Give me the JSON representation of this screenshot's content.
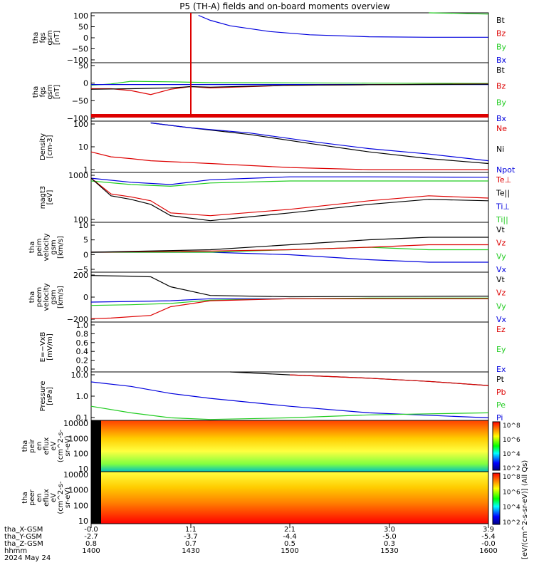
{
  "title": "P5 (TH-A) fields and on-board moments overview",
  "colors": {
    "black": "#000000",
    "red": "#dd0000",
    "green": "#22cc22",
    "blue": "#0000dd"
  },
  "bottom_axis": {
    "rows": [
      {
        "label": "tha_X-GSM",
        "values": [
          "-0.0",
          "1.1",
          "2.1",
          "3.0",
          "3.9"
        ]
      },
      {
        "label": "tha_Y-GSM",
        "values": [
          "-2.7",
          "-3.7",
          "-4.4",
          "-5.0",
          "-5.4"
        ]
      },
      {
        "label": "tha_Z-GSM",
        "values": [
          "0.8",
          "0.7",
          "0.5",
          "0.3",
          "-0.0"
        ]
      },
      {
        "label": "hhmm",
        "values": [
          "1400",
          "1430",
          "1500",
          "1530",
          "1600"
        ]
      }
    ],
    "date": "2024 May 24"
  },
  "colorbar": {
    "label": "[eV/(cm^2-s-sr-eV)] (All Qs)",
    "top_ticks": [
      "10^8",
      "10^6",
      "10^4",
      "10^2"
    ],
    "bottom_ticks": [
      "10^8",
      "10^6",
      "10^4",
      "10^2"
    ]
  },
  "chart_data": [
    {
      "id": "p1",
      "type": "line",
      "ylabel": [
        "tha",
        "fgs",
        "gsm",
        "[nT]"
      ],
      "yticks": [
        "100",
        "50",
        "0",
        "−50",
        "−100"
      ],
      "ylim": [
        -100,
        100
      ],
      "legend": [
        {
          "name": "Bt",
          "color": "#000000"
        },
        {
          "name": "Bz",
          "color": "#dd0000"
        },
        {
          "name": "By",
          "color": "#22cc22"
        },
        {
          "name": "Bx",
          "color": "#0000dd"
        }
      ],
      "series": [
        {
          "name": "Bx",
          "color": "#0000dd",
          "x": [
            0.27,
            0.3,
            0.35,
            0.45,
            0.55,
            0.7,
            0.85,
            1.0
          ],
          "y": [
            90,
            70,
            48,
            25,
            12,
            4,
            2,
            2
          ]
        },
        {
          "name": "By",
          "color": "#22cc22",
          "x": [
            0.85,
            0.92,
            1.0
          ],
          "y": [
            100,
            98,
            95
          ]
        }
      ]
    },
    {
      "id": "p2",
      "type": "line",
      "ylabel": [
        "tha",
        "fgs",
        "gsm",
        "[nT]"
      ],
      "yticks": [
        "50",
        "0",
        "−50",
        "−100"
      ],
      "ylim": [
        -140,
        80
      ],
      "legend": [
        {
          "name": "Bt",
          "color": "#000000"
        },
        {
          "name": "Bz",
          "color": "#dd0000"
        },
        {
          "name": "By",
          "color": "#22cc22"
        },
        {
          "name": "Bx",
          "color": "#0000dd"
        }
      ],
      "series": [
        {
          "name": "By",
          "color": "#22cc22",
          "x": [
            0,
            0.05,
            0.1,
            0.2,
            0.3,
            0.5,
            0.7,
            1.0
          ],
          "y": [
            -5,
            0,
            10,
            8,
            5,
            4,
            3,
            2
          ]
        },
        {
          "name": "Bx",
          "color": "#0000dd",
          "x": [
            0,
            0.2,
            0.4,
            0.6,
            0.8,
            1.0
          ],
          "y": [
            -2,
            -2,
            -2,
            -2,
            -2,
            -2
          ]
        },
        {
          "name": "Bz",
          "color": "#dd0000",
          "x": [
            0,
            0.05,
            0.1,
            0.15,
            0.2,
            0.25,
            0.3,
            0.5,
            0.7,
            1.0
          ],
          "y": [
            -18,
            -18,
            -25,
            -40,
            -20,
            -10,
            -15,
            -5,
            -3,
            0
          ]
        },
        {
          "name": "Bt",
          "color": "#000000",
          "x": [
            0,
            0.1,
            0.2,
            0.25,
            0.3,
            0.5,
            0.7,
            1.0
          ],
          "y": [
            -20,
            -18,
            -15,
            -10,
            -12,
            -5,
            -3,
            -1
          ]
        }
      ]
    },
    {
      "id": "p3",
      "type": "line",
      "ylabel": [
        "Density",
        "[cm-3]"
      ],
      "yticks": [
        "100",
        "10",
        "1"
      ],
      "ylim": [
        0.6,
        120
      ],
      "log": true,
      "legend": [
        {
          "name": "Ne",
          "color": "#dd0000"
        },
        {
          "name": "Ni",
          "color": "#000000"
        },
        {
          "name": "Npot",
          "color": "#0000dd"
        }
      ],
      "series": [
        {
          "name": "Ni",
          "color": "#000000",
          "x": [
            0.15,
            0.25,
            0.4,
            0.55,
            0.7,
            0.85,
            1.0
          ],
          "y": [
            100,
            60,
            30,
            12,
            5,
            2.5,
            1.5
          ]
        },
        {
          "name": "Npot",
          "color": "#0000dd",
          "x": [
            0.15,
            0.25,
            0.4,
            0.55,
            0.7,
            0.85,
            1.0
          ],
          "y": [
            100,
            60,
            35,
            15,
            7,
            4,
            2
          ]
        },
        {
          "name": "Ne",
          "color": "#dd0000",
          "x": [
            0,
            0.05,
            0.1,
            0.15,
            0.3,
            0.5,
            0.7,
            1.0
          ],
          "y": [
            5,
            3,
            2.5,
            2,
            1.5,
            1,
            0.8,
            0.8
          ]
        }
      ]
    },
    {
      "id": "p4",
      "type": "line",
      "ylabel": [
        "magt3",
        "[eV]"
      ],
      "yticks": [
        "1000",
        "100"
      ],
      "ylim": [
        70,
        4000
      ],
      "log": true,
      "legend": [
        {
          "name": "Te⊥",
          "color": "#dd0000"
        },
        {
          "name": "Te||",
          "color": "#000000"
        },
        {
          "name": "Ti⊥",
          "color": "#0000dd"
        },
        {
          "name": "Ti||",
          "color": "#22cc22"
        }
      ],
      "series": [
        {
          "name": "Ti⊥",
          "color": "#0000dd",
          "x": [
            0,
            0.1,
            0.2,
            0.3,
            0.5,
            0.7,
            1.0
          ],
          "y": [
            2500,
            1800,
            1500,
            2200,
            2800,
            2800,
            2700
          ]
        },
        {
          "name": "Ti||",
          "color": "#22cc22",
          "x": [
            0,
            0.1,
            0.2,
            0.3,
            0.5,
            0.7,
            1.0
          ],
          "y": [
            2000,
            1500,
            1300,
            1700,
            2000,
            2000,
            2000
          ]
        },
        {
          "name": "Te⊥",
          "color": "#dd0000",
          "x": [
            0,
            0.05,
            0.1,
            0.15,
            0.2,
            0.3,
            0.5,
            0.7,
            0.85,
            1.0
          ],
          "y": [
            2500,
            700,
            550,
            400,
            150,
            120,
            200,
            400,
            600,
            500
          ]
        },
        {
          "name": "Te||",
          "color": "#000000",
          "x": [
            0,
            0.05,
            0.1,
            0.15,
            0.2,
            0.3,
            0.5,
            0.7,
            0.85,
            1.0
          ],
          "y": [
            2500,
            600,
            450,
            300,
            120,
            80,
            150,
            300,
            450,
            400
          ]
        }
      ]
    },
    {
      "id": "p5",
      "type": "line",
      "ylabel": [
        "tha",
        "peim",
        "velocity",
        "gsm",
        "[km/s]"
      ],
      "yticks": [
        "10",
        "5",
        "0",
        "−5"
      ],
      "ylim": [
        -8,
        12
      ],
      "legend": [
        {
          "name": "Vt",
          "color": "#000000"
        },
        {
          "name": "Vz",
          "color": "#dd0000"
        },
        {
          "name": "Vy",
          "color": "#22cc22"
        },
        {
          "name": "Vx",
          "color": "#0000dd"
        }
      ],
      "series": [
        {
          "name": "Vx",
          "color": "#0000dd",
          "x": [
            0,
            0.3,
            0.5,
            0.7,
            0.85,
            1.0
          ],
          "y": [
            0,
            0,
            -1,
            -3,
            -4,
            -4
          ]
        },
        {
          "name": "Vy",
          "color": "#22cc22",
          "x": [
            0,
            0.3,
            0.5,
            0.7,
            0.85,
            1.0
          ],
          "y": [
            0,
            0,
            1,
            2,
            1,
            1
          ]
        },
        {
          "name": "Vz",
          "color": "#dd0000",
          "x": [
            0,
            0.3,
            0.5,
            0.7,
            0.85,
            1.0
          ],
          "y": [
            0,
            0.5,
            1,
            2,
            3,
            3
          ]
        },
        {
          "name": "Vt",
          "color": "#000000",
          "x": [
            0,
            0.3,
            0.5,
            0.7,
            0.85,
            1.0
          ],
          "y": [
            0,
            1,
            3,
            5,
            6,
            6
          ]
        }
      ]
    },
    {
      "id": "p6",
      "type": "line",
      "ylabel": [
        "tha",
        "peem",
        "velocity",
        "gsm",
        "[km/s]"
      ],
      "yticks": [
        "200",
        "0",
        "−200"
      ],
      "ylim": [
        -350,
        400
      ],
      "legend": [
        {
          "name": "Vt",
          "color": "#000000"
        },
        {
          "name": "Vz",
          "color": "#dd0000"
        },
        {
          "name": "Vy",
          "color": "#22cc22"
        },
        {
          "name": "Vx",
          "color": "#0000dd"
        }
      ],
      "series": [
        {
          "name": "Vx",
          "color": "#0000dd",
          "x": [
            0,
            0.1,
            0.2,
            0.3,
            0.5,
            0.7,
            1.0
          ],
          "y": [
            -50,
            -40,
            -30,
            0,
            0,
            0,
            0
          ]
        },
        {
          "name": "Vy",
          "color": "#22cc22",
          "x": [
            0,
            0.1,
            0.2,
            0.3,
            0.5,
            0.7,
            1.0
          ],
          "y": [
            -100,
            -90,
            -70,
            -20,
            0,
            10,
            10
          ]
        },
        {
          "name": "Vz",
          "color": "#dd0000",
          "x": [
            0,
            0.05,
            0.15,
            0.2,
            0.3,
            0.5,
            1.0
          ],
          "y": [
            -300,
            -290,
            -250,
            -120,
            -30,
            0,
            0
          ]
        },
        {
          "name": "Vt",
          "color": "#000000",
          "x": [
            0,
            0.1,
            0.15,
            0.2,
            0.3,
            0.5,
            1.0
          ],
          "y": [
            350,
            340,
            330,
            180,
            50,
            30,
            40
          ]
        }
      ]
    },
    {
      "id": "p7",
      "type": "line",
      "ylabel": [
        "E=−VxB",
        "[mV/m]"
      ],
      "yticks": [
        "1.0",
        "0.8",
        "0.6",
        "0.4",
        "0.2",
        "0.0"
      ],
      "ylim": [
        0,
        1
      ],
      "legend": [
        {
          "name": "Ez",
          "color": "#dd0000"
        },
        {
          "name": "Ey",
          "color": "#22cc22"
        },
        {
          "name": "Ex",
          "color": "#0000dd"
        }
      ],
      "series": []
    },
    {
      "id": "p8",
      "type": "line",
      "ylabel": [
        "Pressure",
        "[nPa]"
      ],
      "yticks": [
        "10.0",
        "1.0",
        "0.1"
      ],
      "ylim": [
        0.07,
        60
      ],
      "log": true,
      "legend": [
        {
          "name": "Pt",
          "color": "#000000"
        },
        {
          "name": "Pb",
          "color": "#dd0000"
        },
        {
          "name": "Pe",
          "color": "#22cc22"
        },
        {
          "name": "Pi",
          "color": "#0000dd"
        }
      ],
      "series": [
        {
          "name": "Pi",
          "color": "#0000dd",
          "x": [
            0,
            0.1,
            0.2,
            0.3,
            0.5,
            0.7,
            1.0
          ],
          "y": [
            15,
            8,
            3,
            1.5,
            0.5,
            0.2,
            0.1
          ]
        },
        {
          "name": "Pe",
          "color": "#22cc22",
          "x": [
            0,
            0.1,
            0.2,
            0.3,
            0.5,
            0.7,
            1.0
          ],
          "y": [
            0.5,
            0.2,
            0.1,
            0.08,
            0.1,
            0.15,
            0.2
          ]
        },
        {
          "name": "Pt",
          "color": "#000000",
          "x": [
            0.35,
            0.5,
            0.7,
            0.85,
            1.0
          ],
          "y": [
            60,
            40,
            25,
            16,
            9
          ]
        },
        {
          "name": "Pb",
          "color": "#dd0000",
          "x": [
            0.5,
            0.7,
            0.85,
            1.0
          ],
          "y": [
            40,
            25,
            16,
            9
          ]
        }
      ]
    },
    {
      "id": "p9",
      "type": "heatmap",
      "ylabel": [
        "tha",
        "peir",
        "en",
        "eflux",
        "eV",
        "(cm^2-s-",
        "sr-eV)"
      ],
      "yticks": [
        "10000",
        "1000",
        "100",
        "10"
      ]
    },
    {
      "id": "p10",
      "type": "heatmap",
      "ylabel": [
        "tha",
        "peer",
        "en",
        "eflux",
        "eV",
        "(cm^2-s-",
        "sr-eV)"
      ],
      "yticks": [
        "10000",
        "1000",
        "100",
        "10"
      ]
    }
  ]
}
